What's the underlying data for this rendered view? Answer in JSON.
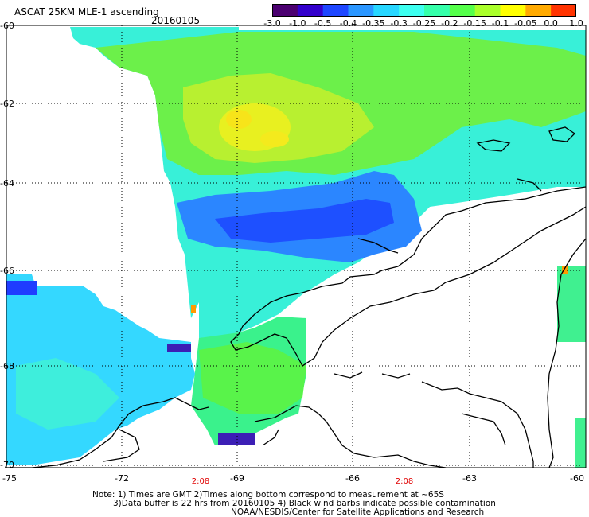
{
  "header": {
    "title": "ASCAT 25KM MLE-1 ascending",
    "date": "20160105"
  },
  "colorbar": {
    "ticks": [
      "-3.0",
      "-1.0",
      "-0.5",
      "-0.4",
      "-0.35",
      "-0.3",
      "-0.25",
      "-0.2",
      "-0.15",
      "-0.1",
      "-0.05",
      "0.0",
      "1.0"
    ],
    "colors": [
      "#4b0070",
      "#3300cc",
      "#1e46ff",
      "#2a96ff",
      "#27d6ff",
      "#3dfff0",
      "#35ffaa",
      "#55ff4a",
      "#aaff2a",
      "#ffff00",
      "#ffaa00",
      "#ff3300"
    ]
  },
  "map": {
    "lat_labels": [
      "-60",
      "-62",
      "-64",
      "-66",
      "-68",
      "-70"
    ],
    "lon_labels": [
      "-75",
      "-72",
      "-69",
      "-66",
      "-63",
      "-60"
    ],
    "time_labels": [
      "2:08",
      "2:08"
    ]
  },
  "notes": [
    "Note: 1) Times are GMT 2)Times along bottom correspond to measurement at ~65S",
    "3)Data buffer is 22 hrs from 20160105 4) Black wind barbs indicate possible contamination",
    "NOAA/NESDIS/Center for Satellite Applications and Research"
  ]
}
